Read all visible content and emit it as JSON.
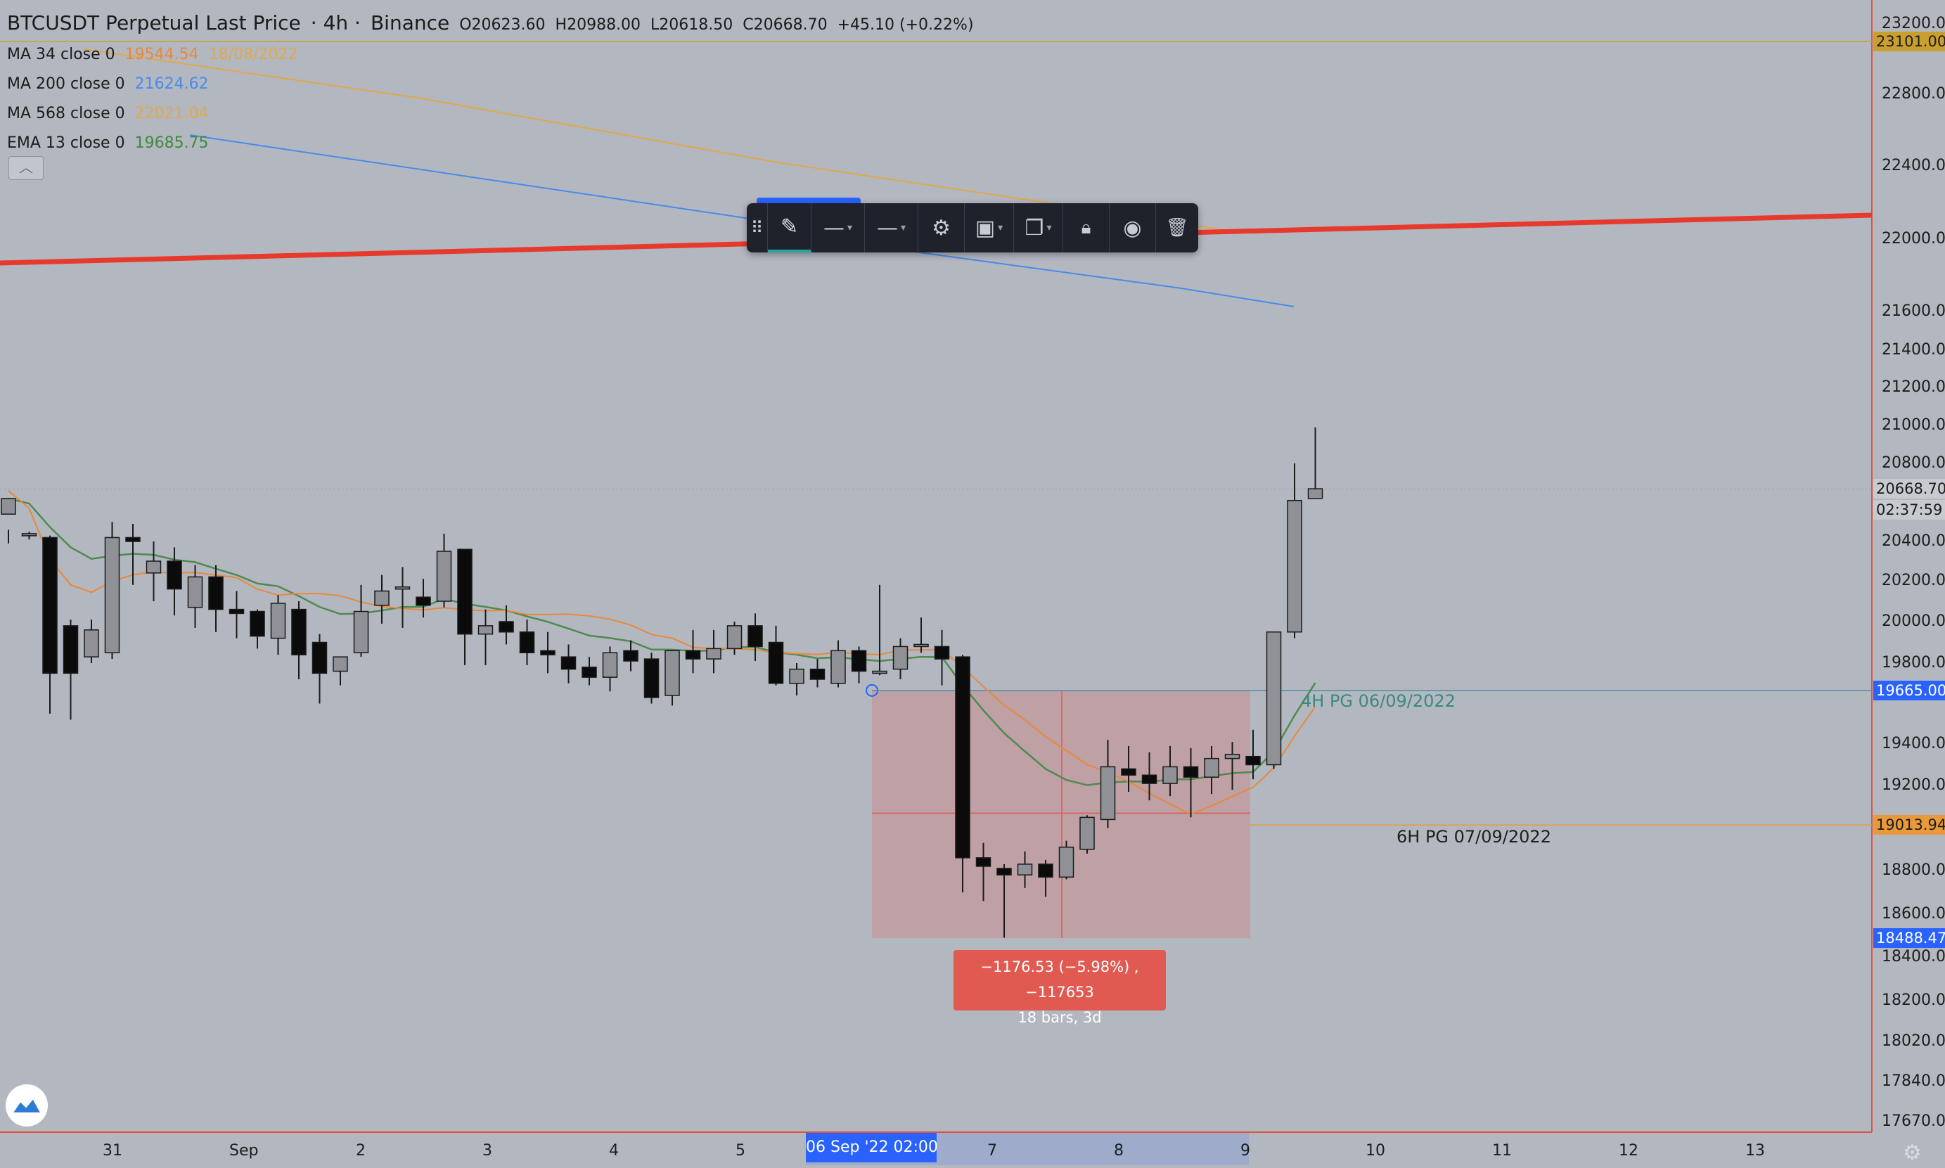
{
  "legend": {
    "symbol": "BTCUSDT Perpetual Last Price",
    "timeframe": "4h",
    "exchange": "Binance",
    "ohlc": {
      "open": "O20623.60",
      "high": "H20988.00",
      "low": "L20618.50",
      "close": "C20668.70",
      "change": "+45.10 (+0.22%)"
    },
    "indicators": [
      {
        "label": "MA 34 close 0",
        "value": "19544.54",
        "color": "#e8893a"
      },
      {
        "label": "MA 200 close 0",
        "value": "21624.62",
        "color": "#4a8be8"
      },
      {
        "label": "MA 568 close 0",
        "value": "22021.04",
        "color": "#e0a94a"
      },
      {
        "label": "EMA 13 close 0",
        "value": "19685.75",
        "color": "#3e8a3e"
      }
    ],
    "date_note": "18/08/2022",
    "collapse_icon": "chevron-up-icon"
  },
  "toolbar": {
    "items": [
      {
        "name": "drag-handle-icon",
        "glyph": "⠿"
      },
      {
        "name": "pencil-icon",
        "glyph": "✎"
      },
      {
        "name": "line-style-icon",
        "glyph": "—"
      },
      {
        "name": "line-width-icon",
        "glyph": "—"
      },
      {
        "name": "gear-icon",
        "glyph": "⚙"
      },
      {
        "name": "template-icon",
        "glyph": "▣"
      },
      {
        "name": "clone-icon",
        "glyph": "❐"
      },
      {
        "name": "lock-icon",
        "glyph": "🔒"
      },
      {
        "name": "eye-icon",
        "glyph": "◉"
      },
      {
        "name": "trash-icon",
        "glyph": "🗑"
      }
    ]
  },
  "price_axis": {
    "ticks": [
      "23200.00",
      "22800.00",
      "22400.00",
      "22000.00",
      "21600.00",
      "21400.00",
      "21200.00",
      "21000.00",
      "20800.00",
      "20400.00",
      "20200.00",
      "20000.00",
      "19800.00",
      "19400.00",
      "19200.00",
      "18800.00",
      "18600.00",
      "18400.00",
      "18200.00",
      "18020.00",
      "17840.00",
      "17670.00"
    ],
    "tags": [
      {
        "text": "23101.00",
        "bg": "#c9a030",
        "fg": "#1c1c1c"
      },
      {
        "text": "20668.70",
        "bg": "#c7cace",
        "fg": "#1c1c1c"
      },
      {
        "text": "02:37:59",
        "bg": "#c7cace",
        "fg": "#1c1c1c"
      },
      {
        "text": "19665.00",
        "bg": "#2962ff",
        "fg": "#ffffff"
      },
      {
        "text": "19013.94",
        "bg": "#e89a3a",
        "fg": "#1c1c1c"
      },
      {
        "text": "18488.47",
        "bg": "#2962ff",
        "fg": "#ffffff"
      }
    ]
  },
  "time_axis": {
    "labels": [
      "31",
      "Sep",
      "2",
      "3",
      "4",
      "5",
      "7",
      "8",
      "9",
      "10",
      "11",
      "12",
      "13"
    ],
    "highlight": "06 Sep '22   02:00"
  },
  "annotations": {
    "measure_line1": "−1176.53 (−5.98%) , −117653",
    "measure_line2": "18 bars, 3d",
    "pg_4h": "4H PG 06/09/2022",
    "pg_6h": "6H PG 07/09/2022"
  },
  "colors": {
    "background": "#b3b7c0",
    "up_candle": "#8f9196",
    "down_candle": "#0b0b0b",
    "trendline": "#e8392d",
    "measure_fill": "#e05a52"
  },
  "chart_data": {
    "type": "candlestick",
    "title": "BTCUSDT Perpetual Last Price · 4h · Binance",
    "x": [
      "31",
      "Sep",
      "2",
      "3",
      "4",
      "5",
      "6",
      "7",
      "8",
      "9",
      "10",
      "11",
      "12",
      "13"
    ],
    "ylim": [
      17600,
      23300
    ],
    "candles": [
      [
        20540,
        20620,
        20460,
        20390
      ],
      [
        20430,
        20440,
        20450,
        20410
      ],
      [
        20420,
        19750,
        20430,
        19550
      ],
      [
        19980,
        19750,
        20010,
        19520
      ],
      [
        19830,
        19960,
        20010,
        19800
      ],
      [
        19850,
        20420,
        20500,
        19820
      ],
      [
        20420,
        20400,
        20490,
        20180
      ],
      [
        20240,
        20300,
        20400,
        20100
      ],
      [
        20300,
        20160,
        20370,
        20030
      ],
      [
        20070,
        20220,
        20280,
        19970
      ],
      [
        20220,
        20060,
        20280,
        19950
      ],
      [
        20060,
        20040,
        20150,
        19920
      ],
      [
        20050,
        19930,
        20060,
        19870
      ],
      [
        19920,
        20090,
        20130,
        19840
      ],
      [
        20060,
        19840,
        20100,
        19720
      ],
      [
        19900,
        19750,
        19940,
        19600
      ],
      [
        19760,
        19830,
        19830,
        19690
      ],
      [
        19850,
        20050,
        20180,
        19830
      ],
      [
        20080,
        20150,
        20230,
        19990
      ],
      [
        20160,
        20170,
        20270,
        19970
      ],
      [
        20120,
        20080,
        20210,
        20020
      ],
      [
        20100,
        20350,
        20440,
        20070
      ],
      [
        20360,
        19940,
        20360,
        19790
      ],
      [
        19940,
        19980,
        20060,
        19790
      ],
      [
        20000,
        19950,
        20080,
        19890
      ],
      [
        19950,
        19850,
        20010,
        19790
      ],
      [
        19860,
        19840,
        19950,
        19750
      ],
      [
        19830,
        19770,
        19890,
        19700
      ],
      [
        19780,
        19730,
        19830,
        19690
      ],
      [
        19730,
        19850,
        19880,
        19660
      ],
      [
        19860,
        19810,
        19910,
        19760
      ],
      [
        19820,
        19630,
        19850,
        19600
      ],
      [
        19640,
        19860,
        19860,
        19590
      ],
      [
        19860,
        19820,
        19960,
        19750
      ],
      [
        19820,
        19870,
        19960,
        19750
      ],
      [
        19870,
        19980,
        20000,
        19840
      ],
      [
        19980,
        19880,
        20040,
        19810
      ],
      [
        19900,
        19700,
        19980,
        19690
      ],
      [
        19700,
        19770,
        19800,
        19640
      ],
      [
        19770,
        19720,
        19820,
        19680
      ],
      [
        19700,
        19860,
        19910,
        19680
      ],
      [
        19860,
        19760,
        19880,
        19700
      ],
      [
        19760,
        19760,
        20180,
        19740
      ],
      [
        19770,
        19880,
        19920,
        19720
      ],
      [
        19880,
        19890,
        20020,
        19850
      ],
      [
        19880,
        19820,
        19960,
        19690
      ],
      [
        19830,
        18860,
        19840,
        18700
      ],
      [
        18860,
        18820,
        18930,
        18660
      ],
      [
        18810,
        18780,
        18830,
        18490
      ],
      [
        18780,
        18830,
        18890,
        18720
      ],
      [
        18830,
        18770,
        18850,
        18680
      ],
      [
        18770,
        18910,
        18940,
        18760
      ],
      [
        18900,
        19050,
        19060,
        18880
      ],
      [
        19040,
        19290,
        19420,
        19000
      ],
      [
        19280,
        19250,
        19390,
        19170
      ],
      [
        19250,
        19210,
        19360,
        19130
      ],
      [
        19210,
        19290,
        19390,
        19150
      ],
      [
        19290,
        19240,
        19380,
        19050
      ],
      [
        19240,
        19330,
        19390,
        19160
      ],
      [
        19330,
        19350,
        19410,
        19180
      ],
      [
        19340,
        19300,
        19470,
        19230
      ],
      [
        19300,
        19950,
        19950,
        19280
      ],
      [
        19950,
        20610,
        20800,
        19920
      ],
      [
        20620,
        20670,
        20990,
        20620
      ]
    ],
    "series": [
      {
        "name": "MA 34 close 0",
        "color": "#e8893a"
      },
      {
        "name": "MA 200 close 0",
        "color": "#4a8be8"
      },
      {
        "name": "MA 568 close 0",
        "color": "#e0a94a"
      },
      {
        "name": "EMA 13 close 0",
        "color": "#3e8a3e"
      }
    ]
  }
}
